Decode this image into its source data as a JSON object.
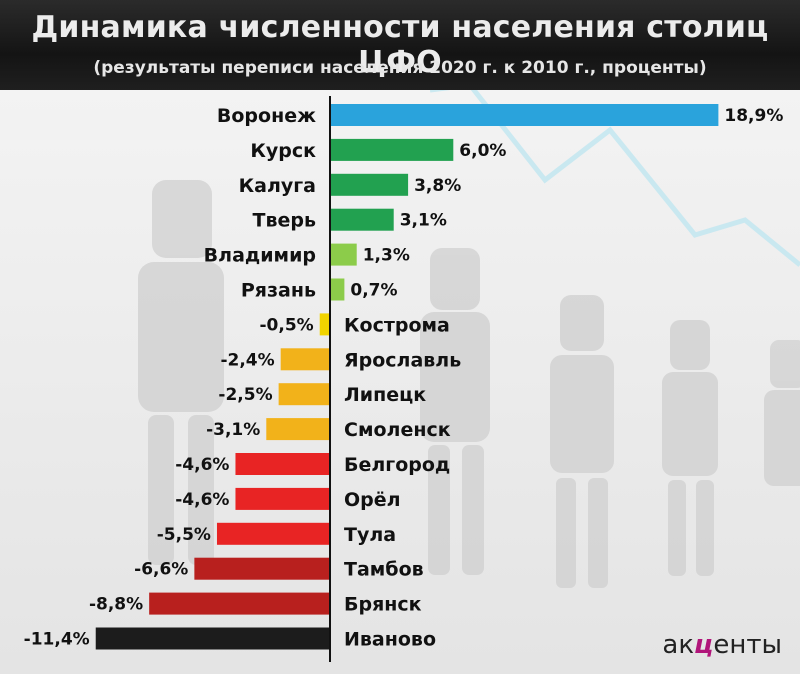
{
  "header": {
    "title": "Динамика численности населения столиц ЦФО",
    "subtitle": "(результаты переписи населения 2020 г. к 2010 г., проценты)"
  },
  "logo": {
    "left": "ак",
    "middle": "ц",
    "right": "енты"
  },
  "chart_data": {
    "type": "bar",
    "orientation": "horizontal",
    "title": "Динамика численности населения столиц ЦФО",
    "subtitle": "(результаты переписи населения 2020 г. к 2010 г., проценты)",
    "categories": [
      "Воронеж",
      "Курск",
      "Калуга",
      "Тверь",
      "Владимир",
      "Рязань",
      "Кострома",
      "Ярославль",
      "Липецк",
      "Смоленск",
      "Белгород",
      "Орёл",
      "Тула",
      "Тамбов",
      "Брянск",
      "Иваново"
    ],
    "values": [
      18.9,
      6.0,
      3.8,
      3.1,
      1.3,
      0.7,
      -0.5,
      -2.4,
      -2.5,
      -3.1,
      -4.6,
      -4.6,
      -5.5,
      -6.6,
      -8.8,
      -11.4
    ],
    "value_labels": [
      "18,9%",
      "6,0%",
      "3,8%",
      "3,1%",
      "1,3%",
      "0,7%",
      "-0,5%",
      "-2,4%",
      "-2,5%",
      "-3,1%",
      "-4,6%",
      "-4,6%",
      "-5,5%",
      "-6,6%",
      "-8,8%",
      "-11,4%"
    ],
    "colors": [
      "#2aa3dc",
      "#22a150",
      "#22a150",
      "#22a150",
      "#8ccc4a",
      "#8ccc4a",
      "#f2d400",
      "#f2b21a",
      "#f2b21a",
      "#f2b21a",
      "#e82424",
      "#e82424",
      "#e82424",
      "#b8201e",
      "#b8201e",
      "#1c1c1c"
    ],
    "xlim": [
      -11.4,
      18.9
    ],
    "grid": false,
    "legend": "none"
  }
}
